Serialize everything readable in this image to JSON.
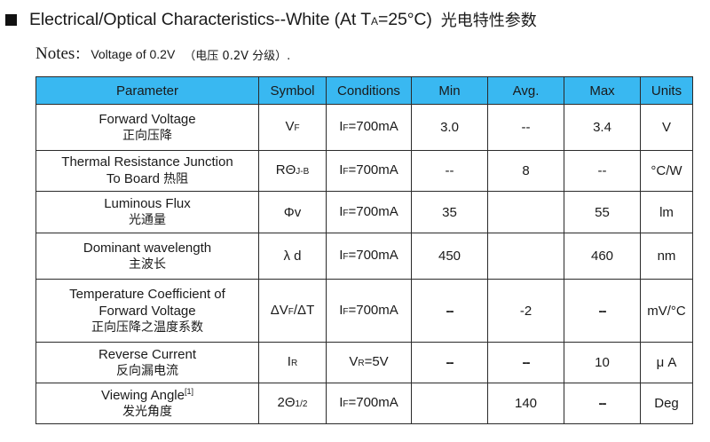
{
  "title": {
    "main": "Electrical/Optical Characteristics--White (At T",
    "sub": "A",
    "tail": "=25°C)",
    "cn": "光电特性参数"
  },
  "notes": {
    "label": "Notes",
    "colon": "：",
    "value": "Voltage of 0.2V",
    "cn": "（电压 0.2V 分级）."
  },
  "table": {
    "headers": [
      "Parameter",
      "Symbol",
      "Conditions",
      "Min",
      "Avg.",
      "Max",
      "Units"
    ],
    "rows": [
      {
        "param_en": [
          "Forward Voltage"
        ],
        "param_cn": "正向压降",
        "symbol_main": "V",
        "symbol_sub": "F",
        "cond_main": "I",
        "cond_sub": "F",
        "cond_tail": "=700mA",
        "min": "3.0",
        "avg": "--",
        "max": "3.4",
        "units": "V"
      },
      {
        "param_en": [
          "Thermal Resistance Junction",
          "To Board"
        ],
        "param_cn": "热阻",
        "symbol_main": "RΘ",
        "symbol_sub": "J-B",
        "cond_main": "I",
        "cond_sub": "F",
        "cond_tail": "=700mA",
        "min": "--",
        "avg": "8",
        "max": "--",
        "units": "°C/W"
      },
      {
        "param_en": [
          "Luminous Flux"
        ],
        "param_cn": "光通量",
        "symbol_main": "Φv",
        "symbol_sub": "",
        "cond_main": "I",
        "cond_sub": "F",
        "cond_tail": "=700mA",
        "min": "35",
        "avg": "",
        "max": "55",
        "units": "lm"
      },
      {
        "param_en": [
          "Dominant wavelength"
        ],
        "param_cn": "主波长",
        "symbol_main": "λ d",
        "symbol_sub": "",
        "cond_main": "I",
        "cond_sub": "F",
        "cond_tail": "=700mA",
        "min": "450",
        "avg": "",
        "max": "460",
        "units": "nm"
      },
      {
        "param_en": [
          "Temperature Coefficient of",
          "Forward Voltage"
        ],
        "param_cn": "正向压降之温度系数",
        "symbol_main": "ΔV",
        "symbol_sub": "F",
        "symbol_tail": "/ΔT",
        "cond_main": "I",
        "cond_sub": "F",
        "cond_tail": "=700mA",
        "min": "--",
        "avg": "-2",
        "max": "--",
        "units": "mV/°C"
      },
      {
        "param_en": [
          "Reverse Current"
        ],
        "param_cn": "反向漏电流",
        "symbol_main": "I",
        "symbol_sub": "R",
        "cond_main": "V",
        "cond_sub": "R",
        "cond_tail": "=5V",
        "min": "--",
        "avg": "--",
        "max": "10",
        "units": "μ A"
      },
      {
        "param_en": [
          "Viewing Angle"
        ],
        "param_sup": "[1]",
        "param_cn": "发光角度",
        "symbol_main": "2Θ",
        "symbol_sub": "1/2",
        "cond_main": "I",
        "cond_sub": "F",
        "cond_tail": "=700mA",
        "min": "",
        "avg": "140",
        "max": "--",
        "units": "Deg"
      }
    ]
  }
}
